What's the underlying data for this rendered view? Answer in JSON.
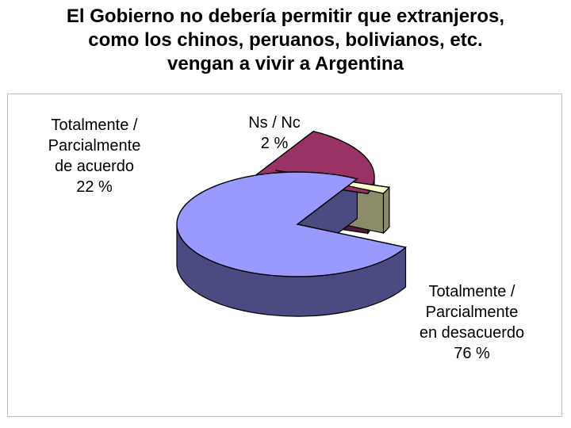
{
  "title_lines": [
    "El Gobierno no debería permitir que extranjeros,",
    "como los chinos, peruanos, bolivianos, etc.",
    "vengan a vivir a Argentina"
  ],
  "chart_data": {
    "type": "pie",
    "title": "El Gobierno no debería permitir que extranjeros, como los chinos, peruanos, bolivianos, etc. vengan a vivir a Argentina",
    "style": "3d-exploded",
    "slices": [
      {
        "label": "Totalmente / Parcialmente en desacuerdo",
        "value": 76,
        "display": "76 %",
        "label_lines": [
          "Totalmente /",
          "Parcialmente",
          "en desacuerdo",
          "76 %"
        ],
        "color": "#9999ff",
        "side_color": "#4b4b82"
      },
      {
        "label": "Totalmente / Parcialmente de acuerdo",
        "value": 22,
        "display": "22 %",
        "label_lines": [
          "Totalmente /",
          "Parcialmente",
          "de acuerdo",
          "22 %"
        ],
        "color": "#993366",
        "side_color": "#531a36"
      },
      {
        "label": "Ns / Nc",
        "value": 2,
        "display": "2 %",
        "label_lines": [
          "Ns / Nc",
          "2 %"
        ],
        "color": "#ffffcc",
        "side_color": "#8c8c6a"
      }
    ]
  }
}
